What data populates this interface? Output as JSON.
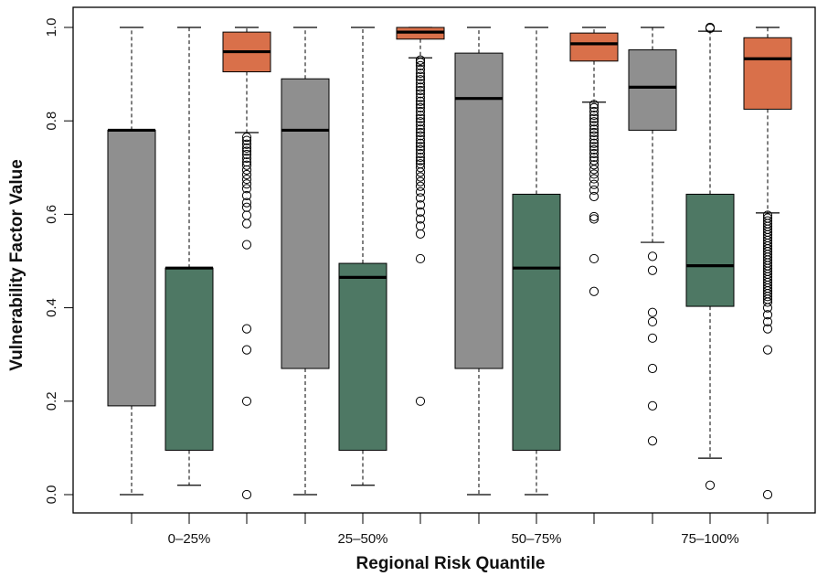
{
  "chart_data": {
    "type": "boxplot",
    "title": "",
    "xlabel": "Regional Risk Quantile",
    "ylabel": "Vulnerability Factor Value",
    "ylim": [
      0,
      1
    ],
    "yticks": [
      "0.0",
      "0.2",
      "0.4",
      "0.6",
      "0.8",
      "1.0"
    ],
    "ytick_values": [
      0,
      0.2,
      0.4,
      0.6,
      0.8,
      1.0
    ],
    "categories": [
      "0–25%",
      "25–50%",
      "50–75%",
      "75–100%"
    ],
    "grid": false,
    "legend": "none",
    "series_colors": [
      "#8f8f8f",
      "#4e7864",
      "#d9704a"
    ],
    "boxes": [
      {
        "group": 0,
        "series": 0,
        "whisker_low": 0.0,
        "q1": 0.19,
        "median": 0.78,
        "q3": 0.78,
        "whisker_high": 1.0,
        "outliers": []
      },
      {
        "group": 0,
        "series": 1,
        "whisker_low": 0.02,
        "q1": 0.095,
        "median": 0.485,
        "q3": 0.485,
        "whisker_high": 1.0,
        "outliers": []
      },
      {
        "group": 0,
        "series": 2,
        "whisker_low": 0.775,
        "q1": 0.905,
        "median": 0.948,
        "q3": 0.99,
        "whisker_high": 1.0,
        "outliers": [
          0.765,
          0.758,
          0.75,
          0.742,
          0.735,
          0.728,
          0.72,
          0.712,
          0.705,
          0.695,
          0.685,
          0.675,
          0.665,
          0.655,
          0.64,
          0.625,
          0.615,
          0.598,
          0.58,
          0.535,
          0.355,
          0.31,
          0.2,
          0.0
        ]
      },
      {
        "group": 1,
        "series": 0,
        "whisker_low": 0.0,
        "q1": 0.27,
        "median": 0.78,
        "q3": 0.89,
        "whisker_high": 1.0,
        "outliers": []
      },
      {
        "group": 1,
        "series": 1,
        "whisker_low": 0.02,
        "q1": 0.095,
        "median": 0.465,
        "q3": 0.495,
        "whisker_high": 1.0,
        "outliers": []
      },
      {
        "group": 1,
        "series": 2,
        "whisker_low": 0.935,
        "q1": 0.975,
        "median": 0.99,
        "q3": 1.0,
        "whisker_high": 1.0,
        "outliers": [
          0.93,
          0.925,
          0.918,
          0.91,
          0.902,
          0.895,
          0.888,
          0.88,
          0.872,
          0.865,
          0.858,
          0.85,
          0.842,
          0.835,
          0.828,
          0.82,
          0.812,
          0.805,
          0.798,
          0.79,
          0.782,
          0.775,
          0.768,
          0.76,
          0.752,
          0.745,
          0.738,
          0.73,
          0.722,
          0.715,
          0.708,
          0.7,
          0.69,
          0.68,
          0.67,
          0.66,
          0.648,
          0.635,
          0.62,
          0.605,
          0.59,
          0.575,
          0.558,
          0.505,
          0.2
        ]
      },
      {
        "group": 2,
        "series": 0,
        "whisker_low": 0.0,
        "q1": 0.27,
        "median": 0.848,
        "q3": 0.945,
        "whisker_high": 1.0,
        "outliers": []
      },
      {
        "group": 2,
        "series": 1,
        "whisker_low": 0.0,
        "q1": 0.095,
        "median": 0.485,
        "q3": 0.643,
        "whisker_high": 1.0,
        "outliers": []
      },
      {
        "group": 2,
        "series": 2,
        "whisker_low": 0.84,
        "q1": 0.928,
        "median": 0.965,
        "q3": 0.988,
        "whisker_high": 1.0,
        "outliers": [
          0.835,
          0.828,
          0.82,
          0.812,
          0.805,
          0.798,
          0.79,
          0.782,
          0.775,
          0.768,
          0.76,
          0.752,
          0.745,
          0.738,
          0.73,
          0.722,
          0.715,
          0.706,
          0.696,
          0.686,
          0.676,
          0.664,
          0.652,
          0.638,
          0.595,
          0.59,
          0.505,
          0.435
        ]
      },
      {
        "group": 3,
        "series": 0,
        "whisker_low": 0.54,
        "q1": 0.78,
        "median": 0.872,
        "q3": 0.952,
        "whisker_high": 1.0,
        "outliers": [
          0.51,
          0.48,
          0.39,
          0.37,
          0.335,
          0.27,
          0.19,
          0.115
        ]
      },
      {
        "group": 3,
        "series": 1,
        "whisker_low": 0.078,
        "q1": 0.403,
        "median": 0.49,
        "q3": 0.643,
        "whisker_high": 0.992,
        "outliers": [
          1.0,
          0.998,
          0.02
        ]
      },
      {
        "group": 3,
        "series": 2,
        "whisker_low": 0.603,
        "q1": 0.825,
        "median": 0.933,
        "q3": 0.978,
        "whisker_high": 1.0,
        "outliers": [
          0.598,
          0.592,
          0.586,
          0.58,
          0.574,
          0.568,
          0.562,
          0.556,
          0.55,
          0.544,
          0.538,
          0.532,
          0.526,
          0.52,
          0.514,
          0.508,
          0.502,
          0.496,
          0.49,
          0.484,
          0.478,
          0.472,
          0.466,
          0.46,
          0.454,
          0.448,
          0.442,
          0.436,
          0.43,
          0.424,
          0.418,
          0.412,
          0.4,
          0.385,
          0.37,
          0.355,
          0.31,
          0.0
        ]
      }
    ]
  }
}
